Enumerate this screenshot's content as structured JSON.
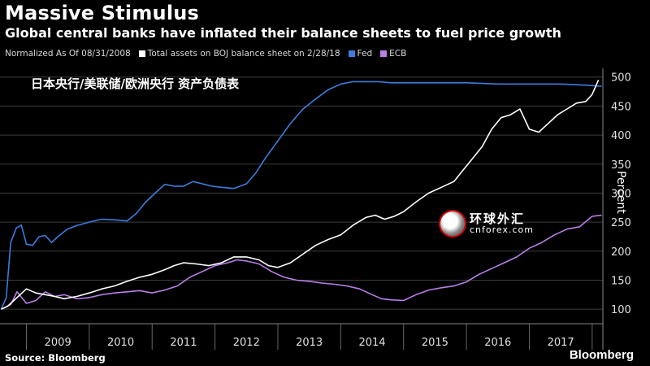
{
  "header": {
    "title": "Massive Stimulus",
    "subtitle": "Global central banks have inflated their balance sheets to fuel price growth"
  },
  "legend": {
    "note": "Normalized As Of 08/31/2008",
    "entries": [
      {
        "label": "Total assets on BOJ balance sheet on 2/28/18",
        "color": "#ffffff"
      },
      {
        "label": "Fed",
        "color": "#3b7ddd"
      },
      {
        "label": "ECB",
        "color": "#b97ee8"
      }
    ]
  },
  "annotation": "日本央行/美联储/欧洲央行   资产负债表",
  "footer": {
    "source": "Source: Bloomberg",
    "brand": "Bloomberg"
  },
  "watermark": {
    "cn": "环球外汇",
    "en": "cnforex.com"
  },
  "colors": {
    "boj": "#ffffff",
    "fed": "#3b7ddd",
    "ecb": "#b97ee8",
    "grid": "#3c3c3c"
  },
  "chart_data": {
    "type": "line",
    "title": "Massive Stimulus",
    "ylabel": "Percent",
    "xlabel": "",
    "x_ticks": [
      "2009",
      "2010",
      "2011",
      "2012",
      "2013",
      "2014",
      "2015",
      "2016",
      "2017"
    ],
    "xlim": [
      2008.58,
      2018.17
    ],
    "ylim": [
      75,
      515
    ],
    "y_ticks": [
      100,
      150,
      200,
      250,
      300,
      350,
      400,
      450,
      500
    ],
    "series": [
      {
        "name": "Fed",
        "x": [
          2008.6,
          2008.68,
          2008.75,
          2008.84,
          2008.92,
          2009.0,
          2009.1,
          2009.2,
          2009.3,
          2009.4,
          2009.5,
          2009.65,
          2009.8,
          2010.0,
          2010.2,
          2010.4,
          2010.6,
          2010.75,
          2010.9,
          2011.05,
          2011.2,
          2011.35,
          2011.5,
          2011.65,
          2011.8,
          2011.95,
          2012.1,
          2012.3,
          2012.5,
          2012.65,
          2012.8,
          2013.0,
          2013.2,
          2013.4,
          2013.6,
          2013.8,
          2014.0,
          2014.2,
          2014.4,
          2014.6,
          2014.8,
          2015.0,
          2015.5,
          2016.0,
          2016.5,
          2017.0,
          2017.5,
          2017.9,
          2018.15
        ],
        "values": [
          100,
          120,
          215,
          240,
          245,
          212,
          210,
          225,
          227,
          215,
          225,
          238,
          244,
          250,
          255,
          254,
          252,
          265,
          285,
          300,
          315,
          312,
          312,
          320,
          316,
          312,
          310,
          308,
          316,
          335,
          360,
          390,
          420,
          445,
          462,
          478,
          488,
          492,
          492,
          492,
          490,
          490,
          490,
          490,
          488,
          488,
          488,
          486,
          484
        ]
      },
      {
        "name": "ECB",
        "x": [
          2008.6,
          2008.75,
          2008.85,
          2009.0,
          2009.15,
          2009.3,
          2009.45,
          2009.6,
          2009.8,
          2010.0,
          2010.2,
          2010.4,
          2010.6,
          2010.8,
          2011.0,
          2011.2,
          2011.4,
          2011.6,
          2011.8,
          2012.0,
          2012.2,
          2012.35,
          2012.5,
          2012.7,
          2012.9,
          2013.1,
          2013.3,
          2013.5,
          2013.7,
          2013.9,
          2014.1,
          2014.3,
          2014.5,
          2014.65,
          2014.8,
          2015.0,
          2015.2,
          2015.4,
          2015.6,
          2015.8,
          2016.0,
          2016.2,
          2016.4,
          2016.6,
          2016.8,
          2017.0,
          2017.2,
          2017.4,
          2017.6,
          2017.8,
          2018.0,
          2018.15
        ],
        "values": [
          100,
          108,
          130,
          110,
          115,
          130,
          122,
          125,
          118,
          120,
          125,
          128,
          130,
          132,
          128,
          133,
          140,
          155,
          165,
          175,
          180,
          185,
          183,
          178,
          165,
          155,
          150,
          148,
          145,
          143,
          140,
          135,
          125,
          118,
          116,
          115,
          125,
          133,
          137,
          140,
          147,
          160,
          170,
          180,
          190,
          205,
          215,
          228,
          238,
          242,
          260,
          262
        ]
      },
      {
        "name": "Total assets on BOJ balance sheet on 2/28/18",
        "x": [
          2008.6,
          2008.7,
          2008.8,
          2008.9,
          2009.0,
          2009.15,
          2009.3,
          2009.45,
          2009.6,
          2009.8,
          2010.0,
          2010.2,
          2010.4,
          2010.6,
          2010.8,
          2011.0,
          2011.2,
          2011.35,
          2011.5,
          2011.7,
          2011.9,
          2012.1,
          2012.3,
          2012.5,
          2012.7,
          2012.85,
          2013.0,
          2013.2,
          2013.4,
          2013.6,
          2013.8,
          2014.0,
          2014.2,
          2014.4,
          2014.55,
          2014.7,
          2014.85,
          2015.0,
          2015.2,
          2015.4,
          2015.6,
          2015.8,
          2015.95,
          2016.1,
          2016.25,
          2016.4,
          2016.55,
          2016.7,
          2016.85,
          2017.0,
          2017.15,
          2017.3,
          2017.45,
          2017.6,
          2017.75,
          2017.9,
          2018.0,
          2018.1
        ],
        "values": [
          100,
          105,
          115,
          125,
          135,
          128,
          125,
          122,
          118,
          122,
          128,
          135,
          140,
          148,
          155,
          160,
          168,
          175,
          180,
          178,
          175,
          180,
          190,
          190,
          185,
          175,
          172,
          180,
          195,
          210,
          220,
          228,
          245,
          258,
          262,
          255,
          260,
          268,
          285,
          300,
          310,
          320,
          340,
          360,
          380,
          410,
          430,
          435,
          445,
          410,
          405,
          420,
          435,
          445,
          455,
          458,
          470,
          495
        ]
      }
    ]
  }
}
